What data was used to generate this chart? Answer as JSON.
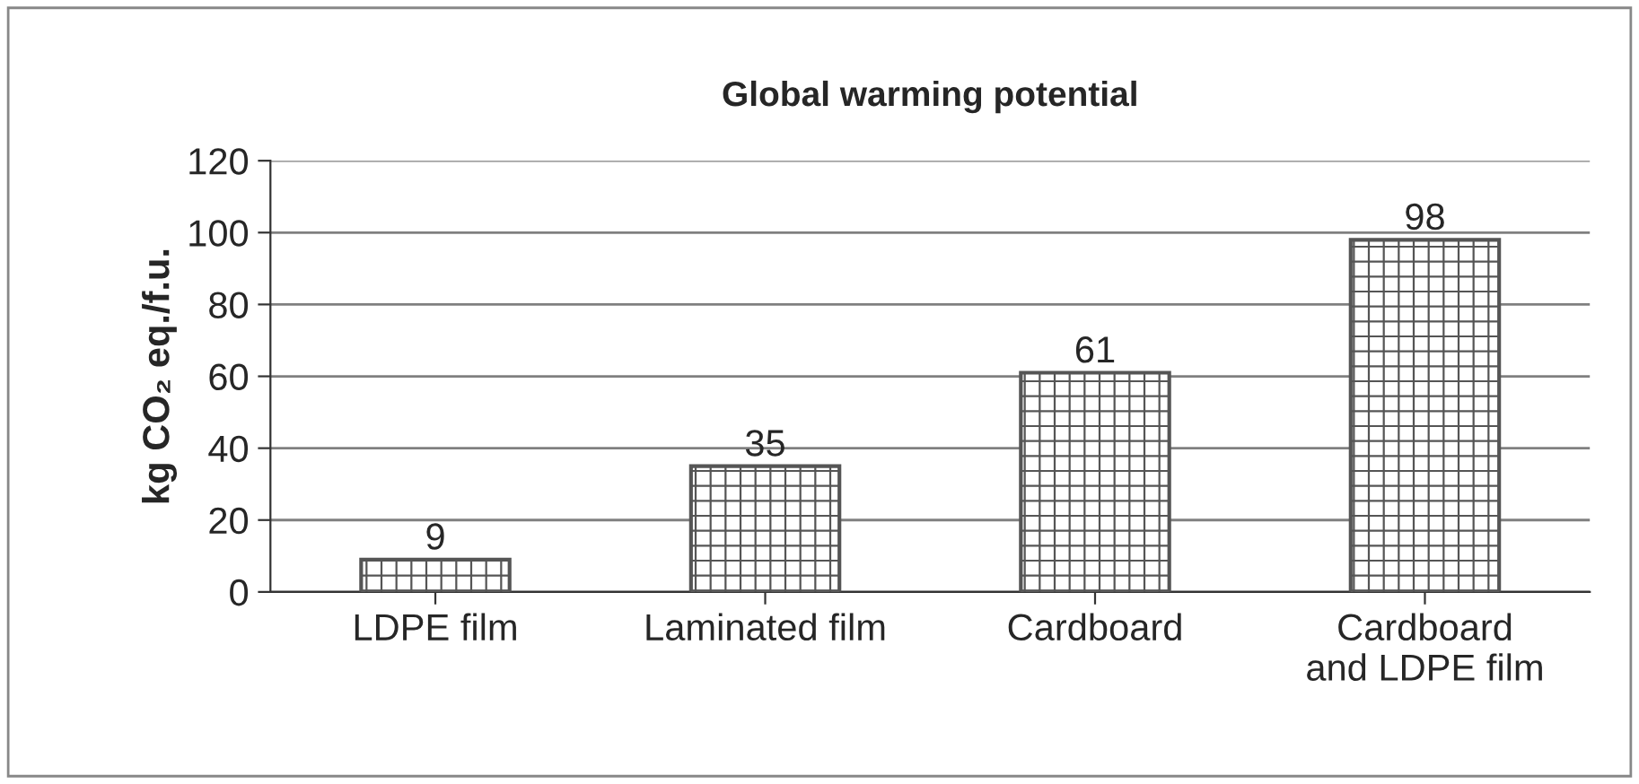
{
  "chart_data": {
    "type": "bar",
    "title": "Global warming potential",
    "ylabel": "kg CO₂ eq./f.u.",
    "categories": [
      "LDPE film",
      "Laminated film",
      "Cardboard",
      "Cardboard\nand LDPE film"
    ],
    "values": [
      9,
      35,
      61,
      98
    ],
    "color": "#555555",
    "ylim": [
      0,
      120
    ],
    "yticks": [
      0,
      20,
      40,
      60,
      80,
      100,
      120
    ],
    "grid": "y",
    "data_labels": true
  }
}
